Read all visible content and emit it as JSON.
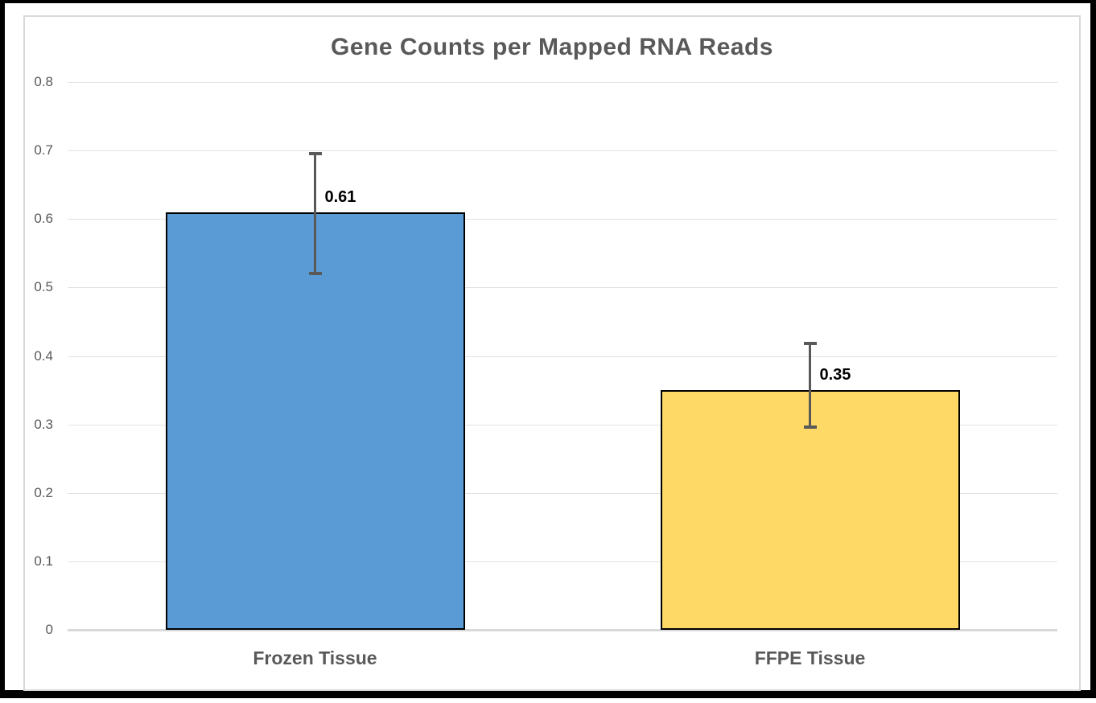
{
  "chart_data": {
    "type": "bar",
    "title": "Gene Counts per Mapped RNA Reads",
    "categories": [
      "Frozen Tissue",
      "FFPE Tissue"
    ],
    "values": [
      0.61,
      0.35
    ],
    "value_labels": [
      "0.61",
      "0.35"
    ],
    "error_bars": [
      {
        "upper": 0.695,
        "lower": 0.52
      },
      {
        "upper": 0.418,
        "lower": 0.296
      }
    ],
    "bar_colors": [
      "#5B9BD5",
      "#FFD966"
    ],
    "xlabel": "",
    "ylabel": "",
    "ylim": [
      0,
      0.8
    ],
    "ytick_step": 0.1,
    "yticks": [
      "0",
      "0.1",
      "0.2",
      "0.3",
      "0.4",
      "0.5",
      "0.6",
      "0.7",
      "0.8"
    ],
    "grid": true,
    "legend_position": "none",
    "colors": {
      "bar_border": "#000000",
      "gridline": "#e2e2e2",
      "axis_line": "#d9d9d9",
      "axis_text": "#595959",
      "title_text": "#595959",
      "data_label_text": "#000000",
      "error_bar": "#595959",
      "chart_border": "#d9d9d9",
      "figure_border": "#000000"
    }
  }
}
